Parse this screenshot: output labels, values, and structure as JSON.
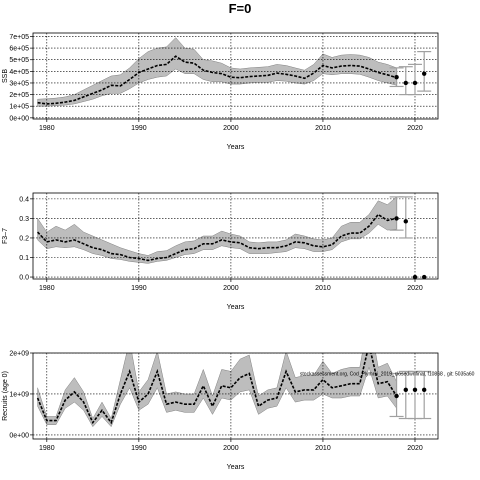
{
  "figure": {
    "title": "F=0"
  },
  "colors": {
    "band": "#bdbdbd",
    "band_edge": "#808080",
    "line": "#000000",
    "proj_bar": "#a0a0a0",
    "grid": "#000000"
  },
  "chart_data": [
    {
      "type": "line",
      "name": "ssb",
      "xlabel": "Years",
      "ylabel": "SSB",
      "xlim": [
        1978.5,
        2022.5
      ],
      "ylim": [
        -10000,
        730000
      ],
      "xticks": [
        1980,
        1990,
        2000,
        2010,
        2020
      ],
      "yticks": [
        0,
        100000,
        200000,
        300000,
        400000,
        500000,
        600000,
        700000
      ],
      "ytick_labels": [
        "0e+00",
        "1e+05",
        "2e+05",
        "3e+05",
        "4e+05",
        "5e+05",
        "6e+05",
        "7e+05"
      ],
      "grid": true,
      "x": [
        1979,
        1980,
        1981,
        1982,
        1983,
        1984,
        1985,
        1986,
        1987,
        1988,
        1989,
        1990,
        1991,
        1992,
        1993,
        1994,
        1995,
        1996,
        1997,
        1998,
        1999,
        2000,
        2001,
        2002,
        2003,
        2004,
        2005,
        2006,
        2007,
        2008,
        2009,
        2010,
        2011,
        2012,
        2013,
        2014,
        2015,
        2016,
        2017,
        2018
      ],
      "median": [
        130000,
        120000,
        125000,
        135000,
        150000,
        180000,
        210000,
        240000,
        280000,
        275000,
        330000,
        390000,
        420000,
        450000,
        460000,
        530000,
        480000,
        470000,
        410000,
        390000,
        380000,
        350000,
        345000,
        355000,
        360000,
        365000,
        385000,
        375000,
        360000,
        340000,
        385000,
        450000,
        430000,
        445000,
        450000,
        445000,
        420000,
        390000,
        370000,
        345000
      ],
      "lower": [
        100000,
        100000,
        105000,
        110000,
        120000,
        140000,
        160000,
        190000,
        210000,
        210000,
        250000,
        300000,
        330000,
        350000,
        360000,
        420000,
        380000,
        380000,
        330000,
        310000,
        310000,
        290000,
        290000,
        300000,
        305000,
        305000,
        320000,
        315000,
        300000,
        290000,
        320000,
        380000,
        370000,
        380000,
        380000,
        375000,
        350000,
        320000,
        300000,
        280000
      ],
      "upper": [
        160000,
        165000,
        170000,
        180000,
        200000,
        240000,
        280000,
        320000,
        360000,
        370000,
        430000,
        510000,
        570000,
        600000,
        610000,
        690000,
        600000,
        590000,
        500000,
        490000,
        470000,
        430000,
        420000,
        430000,
        435000,
        440000,
        460000,
        450000,
        430000,
        410000,
        460000,
        550000,
        520000,
        540000,
        545000,
        540000,
        520000,
        480000,
        460000,
        430000
      ],
      "projection": {
        "x": [
          2018,
          2019,
          2020,
          2021
        ],
        "points": [
          350000,
          300000,
          300000,
          380000
        ],
        "lower": [
          270000,
          200000,
          200000,
          230000
        ],
        "upper": [
          430000,
          440000,
          460000,
          570000
        ]
      }
    },
    {
      "type": "line",
      "name": "fishing-mortality",
      "xlabel": "Years",
      "ylabel": "F3–7",
      "xlim": [
        1978.5,
        2022.5
      ],
      "ylim": [
        -0.01,
        0.43
      ],
      "xticks": [
        1980,
        1990,
        2000,
        2010,
        2020
      ],
      "yticks": [
        0,
        0.1,
        0.2,
        0.3,
        0.4
      ],
      "ytick_labels": [
        "0.0",
        "0.1",
        "0.2",
        "0.3",
        "0.4"
      ],
      "grid": true,
      "x": [
        1979,
        1980,
        1981,
        1982,
        1983,
        1984,
        1985,
        1986,
        1987,
        1988,
        1989,
        1990,
        1991,
        1992,
        1993,
        1994,
        1995,
        1996,
        1997,
        1998,
        1999,
        2000,
        2001,
        2002,
        2003,
        2004,
        2005,
        2006,
        2007,
        2008,
        2009,
        2010,
        2011,
        2012,
        2013,
        2014,
        2015,
        2016,
        2017,
        2018
      ],
      "median": [
        0.23,
        0.18,
        0.19,
        0.18,
        0.19,
        0.17,
        0.15,
        0.14,
        0.12,
        0.115,
        0.1,
        0.095,
        0.085,
        0.095,
        0.1,
        0.12,
        0.14,
        0.145,
        0.17,
        0.17,
        0.19,
        0.18,
        0.175,
        0.15,
        0.145,
        0.15,
        0.15,
        0.16,
        0.18,
        0.175,
        0.16,
        0.155,
        0.165,
        0.21,
        0.225,
        0.225,
        0.26,
        0.32,
        0.29,
        0.3
      ],
      "lower": [
        0.19,
        0.145,
        0.155,
        0.15,
        0.155,
        0.14,
        0.12,
        0.11,
        0.095,
        0.09,
        0.08,
        0.075,
        0.07,
        0.08,
        0.085,
        0.1,
        0.115,
        0.12,
        0.14,
        0.14,
        0.16,
        0.15,
        0.145,
        0.12,
        0.12,
        0.12,
        0.125,
        0.13,
        0.15,
        0.145,
        0.13,
        0.13,
        0.14,
        0.18,
        0.195,
        0.195,
        0.225,
        0.27,
        0.24,
        0.245
      ],
      "upper": [
        0.3,
        0.23,
        0.26,
        0.24,
        0.27,
        0.23,
        0.21,
        0.19,
        0.17,
        0.15,
        0.135,
        0.12,
        0.11,
        0.13,
        0.135,
        0.16,
        0.18,
        0.185,
        0.21,
        0.21,
        0.235,
        0.22,
        0.21,
        0.18,
        0.175,
        0.18,
        0.18,
        0.19,
        0.22,
        0.21,
        0.195,
        0.19,
        0.2,
        0.26,
        0.28,
        0.28,
        0.32,
        0.39,
        0.37,
        0.41
      ],
      "projection": {
        "x": [
          2018,
          2019,
          2020,
          2021
        ],
        "points": [
          0.3,
          0.285,
          0.0,
          0.0
        ],
        "lower": [
          0.24,
          0.2,
          0.0,
          0.0
        ],
        "upper": [
          0.41,
          0.41,
          0.0,
          0.0
        ]
      }
    },
    {
      "type": "line",
      "name": "recruitment",
      "xlabel": "Years",
      "ylabel": "Recruits (age 0)",
      "xlim": [
        1978.5,
        2022.5
      ],
      "ylim": [
        -100000000,
        2000000000
      ],
      "xticks": [
        1980,
        1990,
        2000,
        2010,
        2020
      ],
      "yticks": [
        0,
        1000000000,
        2000000000
      ],
      "ytick_labels": [
        "0e+00",
        "1e+09",
        "2e+09"
      ],
      "grid": true,
      "x": [
        1979,
        1980,
        1981,
        1982,
        1983,
        1984,
        1985,
        1986,
        1987,
        1988,
        1989,
        1990,
        1991,
        1992,
        1993,
        1994,
        1995,
        1996,
        1997,
        1998,
        1999,
        2000,
        2001,
        2002,
        2003,
        2004,
        2005,
        2006,
        2007,
        2008,
        2009,
        2010,
        2011,
        2012,
        2013,
        2014,
        2015,
        2016,
        2017,
        2018
      ],
      "median": [
        900000000,
        350000000,
        350000000,
        850000000,
        1050000000,
        800000000,
        300000000,
        600000000,
        300000000,
        1000000000,
        1550000000,
        800000000,
        1000000000,
        1550000000,
        750000000,
        800000000,
        750000000,
        750000000,
        1200000000,
        700000000,
        1200000000,
        1150000000,
        1400000000,
        1500000000,
        700000000,
        850000000,
        900000000,
        1550000000,
        1050000000,
        1100000000,
        1100000000,
        1350000000,
        1150000000,
        1200000000,
        1250000000,
        1250000000,
        2200000000,
        1250000000,
        1300000000,
        950000000
      ],
      "lower": [
        700000000,
        250000000,
        250000000,
        650000000,
        800000000,
        600000000,
        200000000,
        450000000,
        200000000,
        750000000,
        1150000000,
        600000000,
        750000000,
        1150000000,
        550000000,
        600000000,
        550000000,
        550000000,
        900000000,
        500000000,
        900000000,
        850000000,
        1050000000,
        1100000000,
        500000000,
        650000000,
        700000000,
        1150000000,
        800000000,
        850000000,
        850000000,
        1000000000,
        900000000,
        900000000,
        950000000,
        950000000,
        1650000000,
        900000000,
        950000000,
        650000000
      ],
      "upper": [
        1150000000,
        450000000,
        450000000,
        1100000000,
        1400000000,
        1050000000,
        400000000,
        800000000,
        400000000,
        1350000000,
        2300000000,
        1050000000,
        1350000000,
        2050000000,
        1000000000,
        1050000000,
        1000000000,
        1000000000,
        1600000000,
        950000000,
        1600000000,
        1550000000,
        1850000000,
        1950000000,
        950000000,
        1100000000,
        1150000000,
        2050000000,
        1400000000,
        1450000000,
        1450000000,
        1800000000,
        1500000000,
        1600000000,
        1650000000,
        1650000000,
        2900000000,
        1650000000,
        1750000000,
        1300000000
      ],
      "projection": {
        "x": [
          2018,
          2019,
          2020,
          2021
        ],
        "points": [
          950000000,
          1100000000,
          1100000000,
          1100000000
        ],
        "lower": [
          450000000,
          400000000,
          400000000,
          400000000
        ],
        "upper": [
          1500000000,
          1550000000,
          1550000000,
          1550000000
        ]
      },
      "annotation": {
        "x": 2007.5,
        "y": 1450000000,
        "text": "stockassessment.org, Cod_Plymrsi_2019_closedwnfinal, f10868 , git: 5035a60"
      }
    }
  ]
}
